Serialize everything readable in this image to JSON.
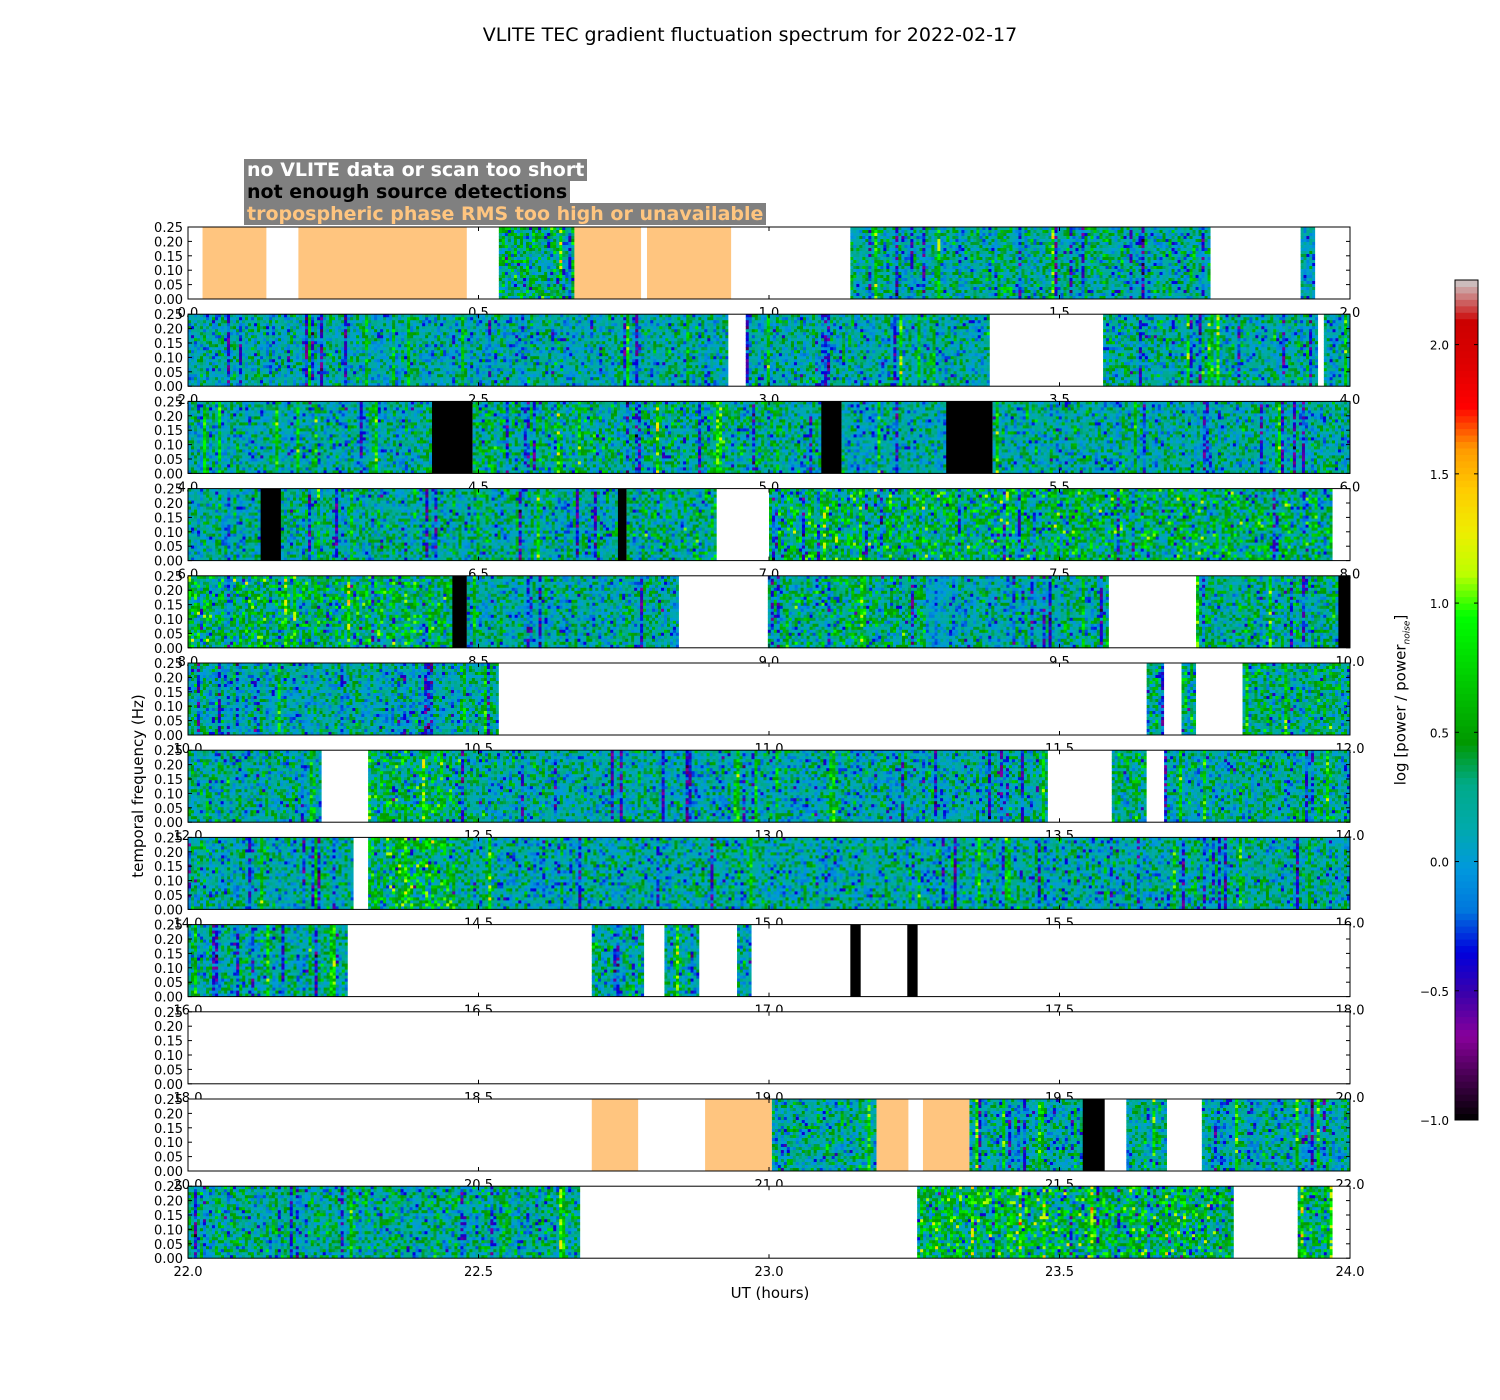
{
  "chart_data": {
    "type": "heatmap",
    "title": "VLITE TEC gradient fluctuation spectrum for 2022-02-17",
    "xlabel": "UT (hours)",
    "ylabel": "temporal frequency (Hz)",
    "colorbar": {
      "label_main": "log [power / power",
      "label_sub": "noise",
      "label_end": "]",
      "range": [
        -1.0,
        2.25
      ],
      "ticks": [
        "−1.0",
        "−0.5",
        "0.0",
        "0.5",
        "1.0",
        "1.5",
        "2.0"
      ],
      "tick_values": [
        -1.0,
        -0.5,
        0.0,
        0.5,
        1.0,
        1.5,
        2.0
      ],
      "colormap": "spectral"
    },
    "legend": {
      "entries": [
        {
          "label": "no VLITE data or scan too short",
          "color": "#ffffff",
          "key": "white"
        },
        {
          "label": "not enough source detections",
          "color": "#000000",
          "key": "black"
        },
        {
          "label": "tropospheric phase RMS too high or unavailable",
          "color": "#ffc57f",
          "key": "orange"
        }
      ],
      "background": "#808080"
    },
    "ylim": [
      0.0,
      0.25
    ],
    "yticks": [
      "0.00",
      "0.05",
      "0.10",
      "0.15",
      "0.20",
      "0.25"
    ],
    "panels": [
      {
        "start": 0,
        "xticks": [
          "0.0",
          "0.5",
          "1.0",
          "1.5",
          "2.0"
        ],
        "segments": [
          {
            "s": 0.0,
            "e": 0.025,
            "t": "white"
          },
          {
            "s": 0.025,
            "e": 0.135,
            "t": "orange"
          },
          {
            "s": 0.135,
            "e": 0.19,
            "t": "white"
          },
          {
            "s": 0.19,
            "e": 0.48,
            "t": "orange"
          },
          {
            "s": 0.48,
            "e": 0.535,
            "t": "white"
          },
          {
            "s": 0.535,
            "e": 0.665,
            "t": "data",
            "a": 0.55
          },
          {
            "s": 0.665,
            "e": 0.78,
            "t": "orange"
          },
          {
            "s": 0.78,
            "e": 0.79,
            "t": "white"
          },
          {
            "s": 0.79,
            "e": 0.935,
            "t": "orange"
          },
          {
            "s": 0.935,
            "e": 1.14,
            "t": "white"
          },
          {
            "s": 1.14,
            "e": 1.76,
            "t": "data",
            "a": 0.35
          },
          {
            "s": 1.76,
            "e": 1.915,
            "t": "white"
          },
          {
            "s": 1.915,
            "e": 1.94,
            "t": "data",
            "a": 0.2
          },
          {
            "s": 1.94,
            "e": 2.0,
            "t": "white"
          }
        ]
      },
      {
        "start": 2,
        "xticks": [
          "2.0",
          "2.5",
          "3.0",
          "3.5",
          "4.0"
        ],
        "segments": [
          {
            "s": 0.0,
            "e": 0.93,
            "t": "data",
            "a": 0.25
          },
          {
            "s": 0.93,
            "e": 0.96,
            "t": "white"
          },
          {
            "s": 0.96,
            "e": 1.38,
            "t": "data",
            "a": 0.3
          },
          {
            "s": 1.38,
            "e": 1.575,
            "t": "white"
          },
          {
            "s": 1.575,
            "e": 1.945,
            "t": "data",
            "a": 0.35
          },
          {
            "s": 1.945,
            "e": 1.955,
            "t": "white"
          },
          {
            "s": 1.955,
            "e": 2.0,
            "t": "data",
            "a": 0.25
          }
        ]
      },
      {
        "start": 4,
        "xticks": [
          "4.0",
          "4.5",
          "5.0",
          "5.5",
          "6.0"
        ],
        "segments": [
          {
            "s": 0.0,
            "e": 0.42,
            "t": "data",
            "a": 0.3
          },
          {
            "s": 0.42,
            "e": 0.49,
            "t": "black"
          },
          {
            "s": 0.49,
            "e": 1.09,
            "t": "data",
            "a": 0.45
          },
          {
            "s": 1.09,
            "e": 1.125,
            "t": "black"
          },
          {
            "s": 1.125,
            "e": 1.305,
            "t": "data",
            "a": 0.25
          },
          {
            "s": 1.305,
            "e": 1.385,
            "t": "black"
          },
          {
            "s": 1.385,
            "e": 2.0,
            "t": "data",
            "a": 0.3
          }
        ]
      },
      {
        "start": 6,
        "xticks": [
          "6.0",
          "6.5",
          "7.0",
          "7.5",
          "8.0"
        ],
        "segments": [
          {
            "s": 0.0,
            "e": 0.125,
            "t": "data",
            "a": 0.3
          },
          {
            "s": 0.125,
            "e": 0.16,
            "t": "black"
          },
          {
            "s": 0.16,
            "e": 0.74,
            "t": "data",
            "a": 0.35
          },
          {
            "s": 0.74,
            "e": 0.755,
            "t": "black"
          },
          {
            "s": 0.755,
            "e": 0.91,
            "t": "data",
            "a": 0.45
          },
          {
            "s": 0.91,
            "e": 1.0,
            "t": "white"
          },
          {
            "s": 1.0,
            "e": 1.97,
            "t": "data",
            "a": 0.65
          },
          {
            "s": 1.97,
            "e": 2.0,
            "t": "white"
          }
        ]
      },
      {
        "start": 8,
        "xticks": [
          "8.0",
          "8.5",
          "9.0",
          "9.5",
          "10.0"
        ],
        "segments": [
          {
            "s": 0.0,
            "e": 0.455,
            "t": "data",
            "a": 0.65
          },
          {
            "s": 0.455,
            "e": 0.48,
            "t": "black"
          },
          {
            "s": 0.48,
            "e": 0.845,
            "t": "data",
            "a": 0.3
          },
          {
            "s": 0.845,
            "e": 0.998,
            "t": "white"
          },
          {
            "s": 0.998,
            "e": 1.27,
            "t": "data",
            "a": 0.55
          },
          {
            "s": 1.27,
            "e": 1.31,
            "t": "data",
            "a": 0.0
          },
          {
            "s": 1.31,
            "e": 1.585,
            "t": "data",
            "a": 0.3
          },
          {
            "s": 1.585,
            "e": 1.735,
            "t": "white"
          },
          {
            "s": 1.735,
            "e": 1.98,
            "t": "data",
            "a": 0.4
          },
          {
            "s": 1.98,
            "e": 2.0,
            "t": "black"
          }
        ]
      },
      {
        "start": 10,
        "xticks": [
          "10.0",
          "10.5",
          "11.0",
          "11.5",
          "12.0"
        ],
        "segments": [
          {
            "s": 0.0,
            "e": 0.535,
            "t": "data",
            "a": 0.3
          },
          {
            "s": 0.535,
            "e": 1.65,
            "t": "white"
          },
          {
            "s": 1.65,
            "e": 1.68,
            "t": "data",
            "a": 0.5
          },
          {
            "s": 1.68,
            "e": 1.71,
            "t": "white"
          },
          {
            "s": 1.71,
            "e": 1.735,
            "t": "data",
            "a": 0.5
          },
          {
            "s": 1.735,
            "e": 1.815,
            "t": "white"
          },
          {
            "s": 1.815,
            "e": 2.0,
            "t": "data",
            "a": 0.45
          }
        ]
      },
      {
        "start": 12,
        "xticks": [
          "12.0",
          "12.5",
          "13.0",
          "13.5",
          "14.0"
        ],
        "segments": [
          {
            "s": 0.0,
            "e": 0.23,
            "t": "data",
            "a": 0.35
          },
          {
            "s": 0.23,
            "e": 0.31,
            "t": "white"
          },
          {
            "s": 0.31,
            "e": 0.47,
            "t": "data",
            "a": 0.65
          },
          {
            "s": 0.47,
            "e": 1.48,
            "t": "data",
            "a": 0.3
          },
          {
            "s": 1.48,
            "e": 1.59,
            "t": "white"
          },
          {
            "s": 1.59,
            "e": 1.65,
            "t": "data",
            "a": 0.45
          },
          {
            "s": 1.65,
            "e": 1.68,
            "t": "white"
          },
          {
            "s": 1.68,
            "e": 2.0,
            "t": "data",
            "a": 0.35
          }
        ]
      },
      {
        "start": 14,
        "xticks": [
          "14.0",
          "14.5",
          "15.0",
          "15.5",
          "16.0"
        ],
        "segments": [
          {
            "s": 0.0,
            "e": 0.285,
            "t": "data",
            "a": 0.3
          },
          {
            "s": 0.285,
            "e": 0.31,
            "t": "white"
          },
          {
            "s": 0.31,
            "e": 0.46,
            "t": "data",
            "a": 0.75
          },
          {
            "s": 0.46,
            "e": 2.0,
            "t": "data",
            "a": 0.3
          }
        ]
      },
      {
        "start": 16,
        "xticks": [
          "16.0",
          "16.5",
          "17.0",
          "17.5",
          "18.0"
        ],
        "segments": [
          {
            "s": 0.0,
            "e": 0.275,
            "t": "data",
            "a": 0.3
          },
          {
            "s": 0.275,
            "e": 0.695,
            "t": "white"
          },
          {
            "s": 0.695,
            "e": 0.785,
            "t": "data",
            "a": 0.4
          },
          {
            "s": 0.785,
            "e": 0.82,
            "t": "white"
          },
          {
            "s": 0.82,
            "e": 0.88,
            "t": "data",
            "a": 0.4
          },
          {
            "s": 0.88,
            "e": 0.945,
            "t": "white"
          },
          {
            "s": 0.945,
            "e": 0.97,
            "t": "data",
            "a": 0.3
          },
          {
            "s": 0.97,
            "e": 1.14,
            "t": "white"
          },
          {
            "s": 1.14,
            "e": 1.158,
            "t": "black"
          },
          {
            "s": 1.158,
            "e": 1.238,
            "t": "white"
          },
          {
            "s": 1.238,
            "e": 1.256,
            "t": "black"
          },
          {
            "s": 1.256,
            "e": 2.0,
            "t": "white"
          }
        ]
      },
      {
        "start": 18,
        "xticks": [
          "18.0",
          "18.5",
          "19.0",
          "19.5",
          "20.0"
        ],
        "segments": [
          {
            "s": 0.0,
            "e": 2.0,
            "t": "white"
          }
        ]
      },
      {
        "start": 20,
        "xticks": [
          "20.0",
          "20.5",
          "21.0",
          "21.5",
          "22.0"
        ],
        "segments": [
          {
            "s": 0.0,
            "e": 0.695,
            "t": "white"
          },
          {
            "s": 0.695,
            "e": 0.775,
            "t": "orange"
          },
          {
            "s": 0.775,
            "e": 0.89,
            "t": "white"
          },
          {
            "s": 0.89,
            "e": 1.005,
            "t": "orange"
          },
          {
            "s": 1.005,
            "e": 1.185,
            "t": "data",
            "a": 0.35
          },
          {
            "s": 1.185,
            "e": 1.24,
            "t": "orange"
          },
          {
            "s": 1.24,
            "e": 1.265,
            "t": "white"
          },
          {
            "s": 1.265,
            "e": 1.345,
            "t": "orange"
          },
          {
            "s": 1.345,
            "e": 1.54,
            "t": "data",
            "a": 0.3
          },
          {
            "s": 1.54,
            "e": 1.578,
            "t": "black"
          },
          {
            "s": 1.578,
            "e": 1.615,
            "t": "white"
          },
          {
            "s": 1.615,
            "e": 1.685,
            "t": "data",
            "a": 0.3
          },
          {
            "s": 1.685,
            "e": 1.745,
            "t": "white"
          },
          {
            "s": 1.745,
            "e": 2.0,
            "t": "data",
            "a": 0.3
          }
        ]
      },
      {
        "start": 22,
        "xticks": [
          "22.0",
          "22.5",
          "23.0",
          "23.5",
          "24.0"
        ],
        "segments": [
          {
            "s": 0.0,
            "e": 0.675,
            "t": "data",
            "a": 0.4
          },
          {
            "s": 0.675,
            "e": 1.255,
            "t": "white"
          },
          {
            "s": 1.255,
            "e": 1.8,
            "t": "data",
            "a": 0.75
          },
          {
            "s": 1.8,
            "e": 1.91,
            "t": "white"
          },
          {
            "s": 1.91,
            "e": 1.97,
            "t": "data",
            "a": 0.6
          },
          {
            "s": 1.97,
            "e": 2.0,
            "t": "white"
          }
        ]
      }
    ]
  }
}
